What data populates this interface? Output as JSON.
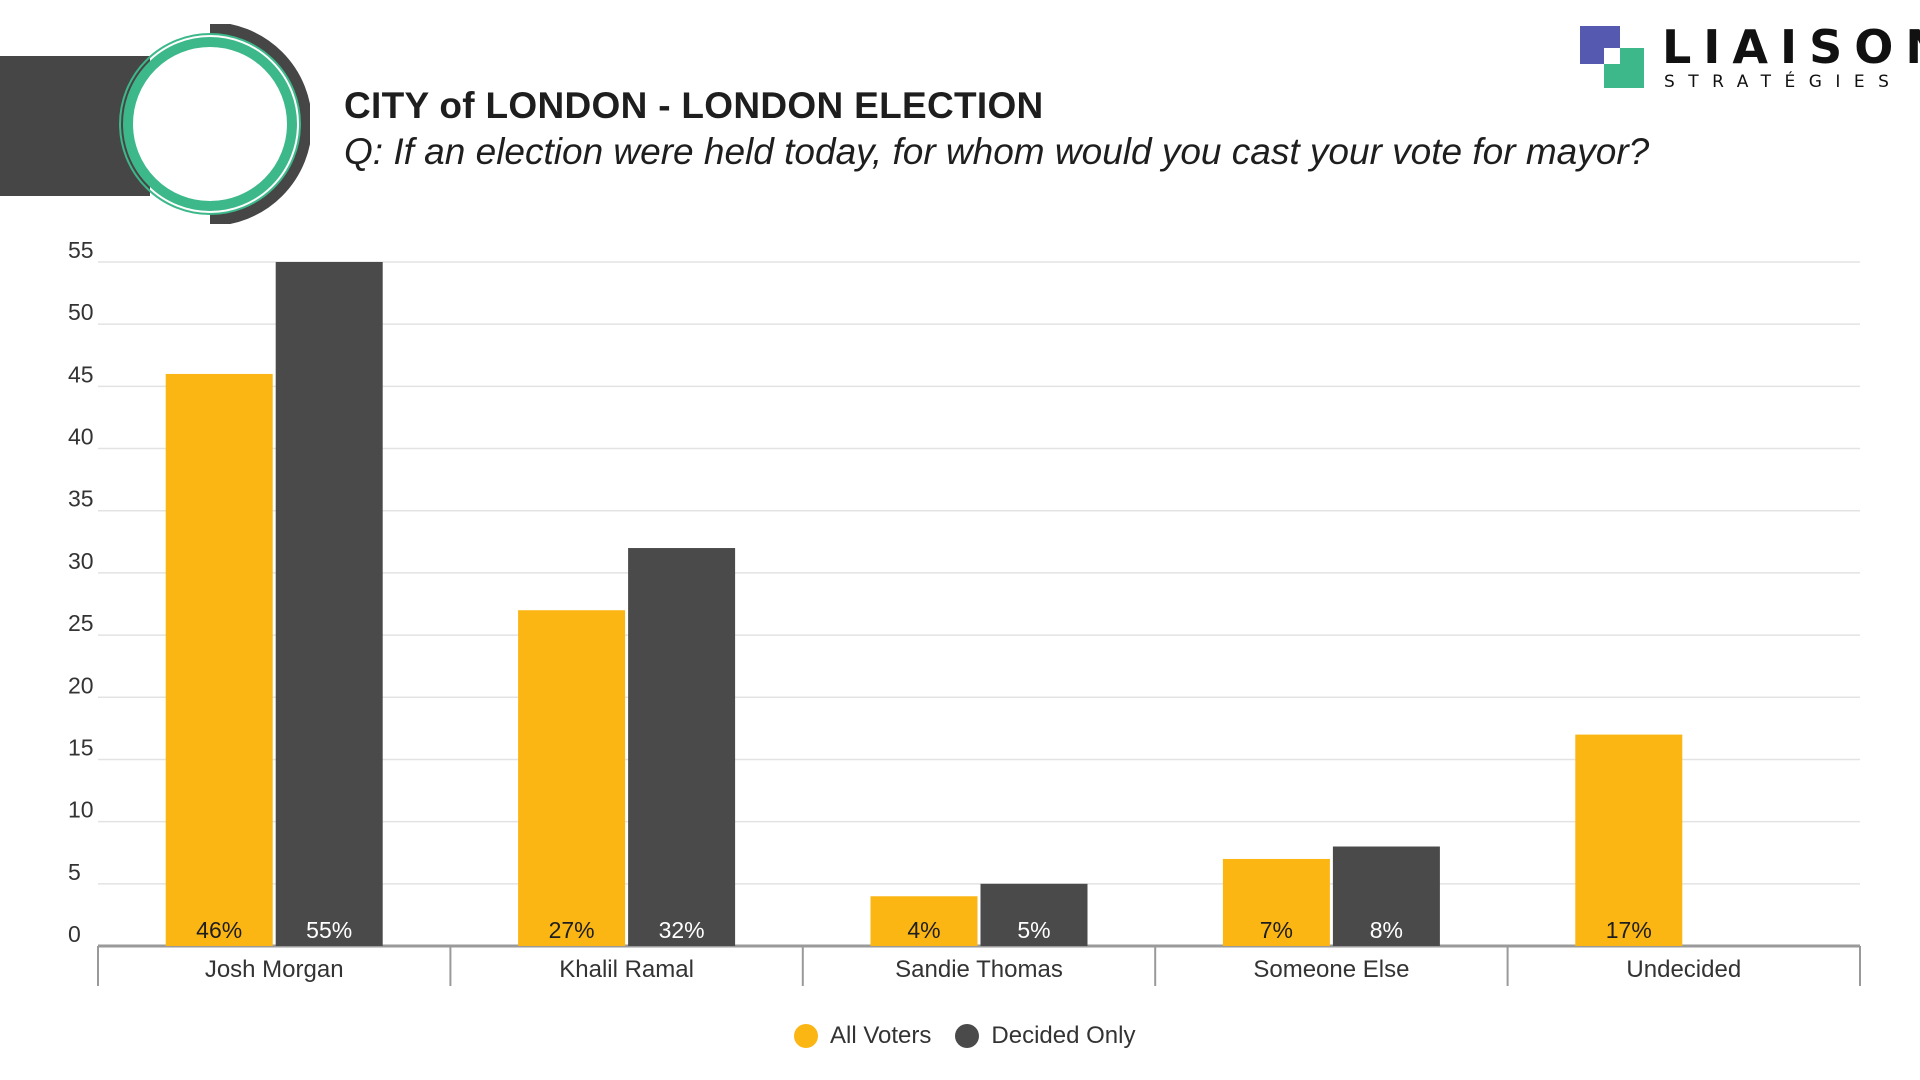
{
  "header": {
    "title": "CITY of LONDON - LONDON ELECTION",
    "subtitle": "Q: If an election were held today, for whom would you cast your vote for mayor?"
  },
  "logo": {
    "name": "LIAISON",
    "tagline": "STRATÉGIES",
    "colors": {
      "blue": "#5559B0",
      "green": "#3DB88A"
    }
  },
  "colors": {
    "all_voters": "#FBB614",
    "decided_only": "#4A4A4A",
    "ring_green": "#3DB88A",
    "deco_dark": "#464646",
    "grid": "#E3E3E3",
    "axis": "#9A9A9A"
  },
  "chart_data": {
    "type": "bar",
    "categories": [
      "Josh Morgan",
      "Khalil Ramal",
      "Sandie Thomas",
      "Someone Else",
      "Undecided"
    ],
    "series": [
      {
        "name": "All Voters",
        "values": [
          46,
          27,
          4,
          7,
          17
        ],
        "labels": [
          "46%",
          "27%",
          "4%",
          "7%",
          "17%"
        ]
      },
      {
        "name": "Decided Only",
        "values": [
          55,
          32,
          5,
          8,
          null
        ],
        "labels": [
          "55%",
          "32%",
          "5%",
          "8%",
          ""
        ]
      }
    ],
    "yticks": [
      "0",
      "5",
      "10",
      "15",
      "20",
      "25",
      "30",
      "35",
      "40",
      "45",
      "50",
      "55"
    ],
    "ylim": [
      0,
      55
    ],
    "grid": true,
    "legend_position": "bottom"
  }
}
